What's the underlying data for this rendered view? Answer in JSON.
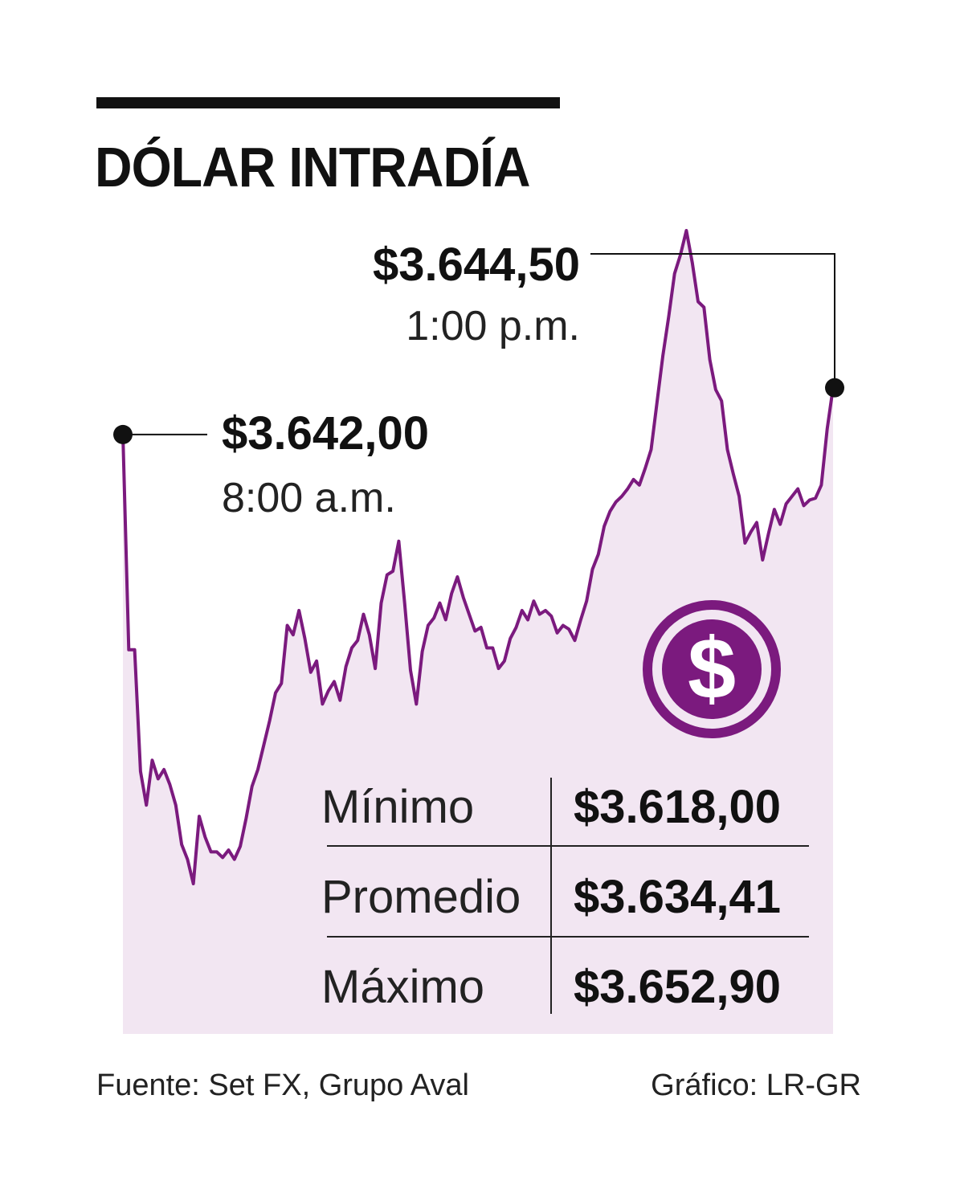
{
  "title": "DÓLAR INTRADÍA",
  "annotations": {
    "open": {
      "value": "$3.642,00",
      "time": "8:00 a.m."
    },
    "peak": {
      "value": "$3.644,50",
      "time": "1:00 p.m."
    }
  },
  "badge_icon": "dollar-coin-icon",
  "stats": [
    {
      "label": "Mínimo",
      "value": "$3.618,00"
    },
    {
      "label": "Promedio",
      "value": "$3.634,41"
    },
    {
      "label": "Máximo",
      "value": "$3.652,90"
    }
  ],
  "footer": {
    "source": "Fuente: Set FX, Grupo Aval",
    "credit": "Gráfico: LR-GR"
  },
  "colors": {
    "line": "#7b1a7e",
    "area_fill": "#f2e6f2",
    "text": "#111111"
  },
  "chart_data": {
    "type": "area",
    "title": "DÓLAR INTRADÍA",
    "xlabel": "",
    "ylabel": "",
    "ylim": [
      3618.0,
      3652.9
    ],
    "series": [
      {
        "values": [
          3642.0,
          3630.5,
          3630.5,
          3624.0,
          3622.2,
          3624.6,
          3623.6,
          3624.1,
          3623.3,
          3622.2,
          3620.1,
          3619.3,
          3618.0,
          3621.6,
          3620.5,
          3619.7,
          3619.7,
          3619.4,
          3619.8,
          3619.3,
          3620.0,
          3621.5,
          3623.2,
          3624.1,
          3625.4,
          3626.7,
          3628.2,
          3628.7,
          3631.8,
          3631.3,
          3632.6,
          3631.1,
          3629.3,
          3629.9,
          3627.6,
          3628.3,
          3628.8,
          3627.8,
          3629.6,
          3630.6,
          3631.0,
          3632.4,
          3631.3,
          3629.5,
          3633.0,
          3634.5,
          3634.7,
          3636.3,
          3633.0,
          3629.4,
          3627.6,
          3630.4,
          3631.8,
          3632.2,
          3633.0,
          3632.1,
          3633.5,
          3634.4,
          3633.3,
          3632.4,
          3631.5,
          3631.7,
          3630.6,
          3630.6,
          3629.5,
          3629.9,
          3631.1,
          3631.7,
          3632.6,
          3632.1,
          3633.1,
          3632.4,
          3632.6,
          3632.3,
          3631.4,
          3631.8,
          3631.6,
          3631.0,
          3632.1,
          3633.1,
          3634.8,
          3635.6,
          3637.1,
          3637.9,
          3638.4,
          3638.7,
          3639.1,
          3639.6,
          3639.3,
          3640.2,
          3641.2,
          3643.7,
          3646.2,
          3648.3,
          3650.6,
          3651.6,
          3652.9,
          3651.2,
          3649.1,
          3648.8,
          3646.0,
          3644.4,
          3643.8,
          3641.2,
          3639.9,
          3638.7,
          3636.2,
          3636.8,
          3637.3,
          3635.3,
          3636.7,
          3638.0,
          3637.2,
          3638.3,
          3638.7,
          3639.1,
          3638.2,
          3638.5,
          3638.6,
          3639.3,
          3642.3,
          3644.5
        ]
      }
    ],
    "points": [
      {
        "label": "$3.642,00 8:00 a.m.",
        "value": 3642.0
      },
      {
        "label": "$3.644,50 1:00 p.m.",
        "value": 3644.5
      }
    ]
  }
}
